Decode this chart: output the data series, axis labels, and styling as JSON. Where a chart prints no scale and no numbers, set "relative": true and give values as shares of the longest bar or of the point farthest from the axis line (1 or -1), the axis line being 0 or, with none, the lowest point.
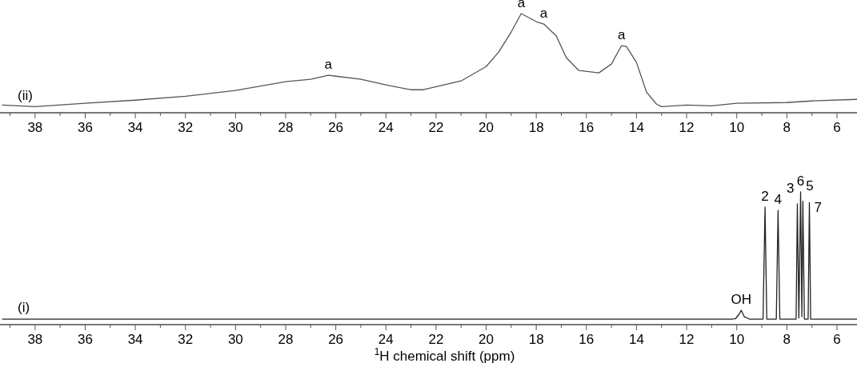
{
  "chart_data": [
    {
      "type": "line",
      "title": "(ii)",
      "relative": true,
      "xlim": [
        39.4,
        5.2
      ],
      "xticks": [
        {
          "value": 39,
          "label": null
        },
        38,
        {
          "value": 37,
          "label": null
        },
        36,
        {
          "value": 35,
          "label": null
        },
        34,
        {
          "value": 33,
          "label": null
        },
        32,
        {
          "value": 31,
          "label": null
        },
        30,
        {
          "value": 29,
          "label": null
        },
        28,
        {
          "value": 27,
          "label": null
        },
        26,
        {
          "value": 25,
          "label": null
        },
        24,
        {
          "value": 23,
          "label": null
        },
        22,
        {
          "value": 21,
          "label": null
        },
        20,
        {
          "value": 19,
          "label": null
        },
        18,
        {
          "value": 17,
          "label": null
        },
        16,
        {
          "value": 15,
          "label": null
        },
        14,
        {
          "value": 13,
          "label": null
        },
        12,
        {
          "value": 11,
          "label": null
        },
        10,
        {
          "value": 9,
          "label": null
        },
        8,
        {
          "value": 7,
          "label": null
        },
        6
      ],
      "x": [
        39.3,
        38,
        36,
        34,
        32,
        30,
        28,
        27,
        26.3,
        26,
        25,
        24,
        23,
        22.5,
        21,
        20,
        19.5,
        19,
        18.6,
        18,
        17.7,
        17.2,
        16.8,
        16.3,
        15.5,
        15,
        14.6,
        14.4,
        14,
        13.6,
        13.2,
        13,
        12,
        11,
        10,
        8,
        7,
        5.2
      ],
      "series": [
        {
          "color": "#555555",
          "values": [
            0.078,
            0.062,
            0.095,
            0.127,
            0.167,
            0.224,
            0.313,
            0.337,
            0.378,
            0.369,
            0.337,
            0.281,
            0.232,
            0.232,
            0.321,
            0.466,
            0.612,
            0.814,
            1,
            0.919,
            0.895,
            0.774,
            0.555,
            0.426,
            0.402,
            0.491,
            0.677,
            0.669,
            0.507,
            0.208,
            0.087,
            0.062,
            0.078,
            0.07,
            0.095,
            0.103,
            0.119,
            0.135
          ]
        }
      ],
      "annotations": [
        {
          "text": "a",
          "x": 26.3,
          "y": 0.378
        },
        {
          "text": "a",
          "x": 18.6,
          "y": 1
        },
        {
          "text": "a",
          "x": 17.7,
          "y": 0.895
        },
        {
          "text": "a",
          "x": 14.6,
          "y": 0.677
        }
      ]
    },
    {
      "type": "line",
      "title": "(i)",
      "relative": true,
      "xlim": [
        39.4,
        5.2
      ],
      "xlabel": "$^{1}$H chemical shift (ppm)",
      "xticks": [
        {
          "value": 39,
          "label": null
        },
        38,
        {
          "value": 37,
          "label": null
        },
        36,
        {
          "value": 35,
          "label": null
        },
        34,
        {
          "value": 33,
          "label": null
        },
        32,
        {
          "value": 31,
          "label": null
        },
        30,
        {
          "value": 29,
          "label": null
        },
        28,
        {
          "value": 27,
          "label": null
        },
        26,
        {
          "value": 25,
          "label": null
        },
        24,
        {
          "value": 23,
          "label": null
        },
        22,
        {
          "value": 21,
          "label": null
        },
        20,
        {
          "value": 19,
          "label": null
        },
        18,
        {
          "value": 17,
          "label": null
        },
        16,
        {
          "value": 15,
          "label": null
        },
        14,
        {
          "value": 13,
          "label": null
        },
        12,
        {
          "value": 11,
          "label": null
        },
        10,
        {
          "value": 9,
          "label": null
        },
        8,
        {
          "value": 7,
          "label": null
        },
        6
      ],
      "x": [
        39.3,
        10.2,
        10.05,
        9.9,
        9.82,
        9.7,
        9.5,
        8.95,
        8.87,
        8.8,
        8.42,
        8.35,
        8.28,
        7.63,
        7.58,
        7.52,
        7.45,
        7.4,
        7.36,
        7.3,
        7.15,
        7.1,
        7.05,
        5.2
      ],
      "series": [
        {
          "color": "#222222",
          "values": [
            0.042,
            0.042,
            0.045,
            0.08,
            0.108,
            0.06,
            0.042,
            0.042,
            0.886,
            0.042,
            0.042,
            0.861,
            0.042,
            0.042,
            0.91,
            0.05,
            1,
            0.06,
            0.93,
            0.042,
            0.042,
            0.92,
            0.042,
            0.042
          ]
        }
      ],
      "annotations": [
        {
          "text": "OH",
          "x": 9.82,
          "y": 0.108
        },
        {
          "text": "2",
          "x": 8.87,
          "y": 0.886
        },
        {
          "text": "4",
          "x": 8.35,
          "y": 0.861
        },
        {
          "text": "3",
          "x": 7.58,
          "y": 0.91
        },
        {
          "text": "6",
          "x": 7.45,
          "y": 1
        },
        {
          "text": "5",
          "x": 7.36,
          "y": 0.93
        },
        {
          "text": "7",
          "x": 7.1,
          "y": 0.92
        }
      ]
    }
  ]
}
